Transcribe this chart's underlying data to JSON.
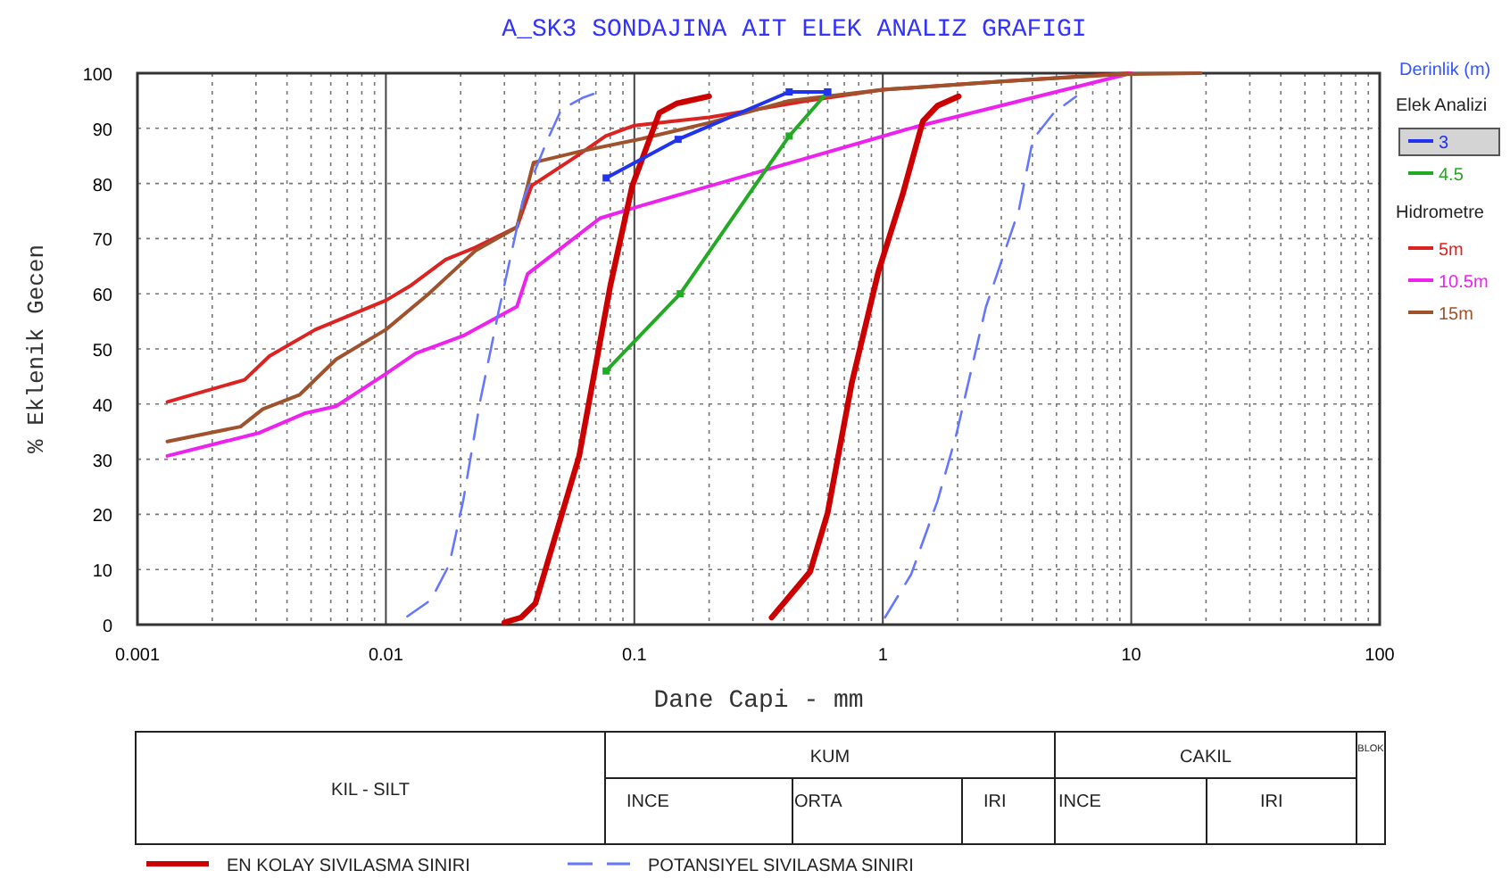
{
  "chart_data": {
    "type": "line",
    "title": "A_SK3 SONDAJINA AIT ELEK ANALIZ GRAFIGI",
    "xlabel": "Dane Capi - mm",
    "ylabel": "% Eklenik Gecen",
    "legend_title": "Derinlik (m)",
    "log": "x",
    "grid": true,
    "legend": "right",
    "xlim": [
      0.001,
      100
    ],
    "ylim": [
      0,
      100
    ],
    "xticks": [
      0.001,
      0.01,
      0.1,
      1,
      10,
      100
    ],
    "yticks": [
      0,
      10,
      20,
      30,
      40,
      50,
      60,
      70,
      80,
      90,
      100
    ],
    "annotations": [
      "Elek Analizi",
      "Hidrometre",
      "KIL - SILT",
      "KUM",
      "INCE",
      "ORTA",
      "IRI",
      "CAKIL",
      "INCE",
      "IRI",
      "BLOK"
    ],
    "series": [
      {
        "name": "3",
        "color": "#2233ee",
        "marker": "square",
        "x": [
          0.077,
          0.15,
          0.42,
          0.6
        ],
        "values": [
          81,
          88,
          96.6,
          96.6
        ]
      },
      {
        "name": "4.5",
        "color": "#22aa22",
        "marker": "square",
        "x": [
          0.077,
          0.153,
          0.42,
          0.6
        ],
        "values": [
          46,
          60,
          88.6,
          96.6
        ]
      },
      {
        "name": "5m",
        "color": "#dd2222",
        "x": [
          0.00132,
          0.0027,
          0.0034,
          0.0052,
          0.01,
          0.0125,
          0.0174,
          0.0229,
          0.0337,
          0.0386,
          0.0583,
          0.0767,
          0.1,
          0.2,
          0.5,
          1,
          3,
          10
        ],
        "values": [
          40.4,
          44.4,
          48.7,
          53.5,
          58.8,
          61.4,
          66.2,
          68.4,
          72.1,
          79.6,
          84.9,
          88.6,
          90.5,
          92,
          95,
          97,
          98.5,
          100
        ]
      },
      {
        "name": "10.5m",
        "color": "#ee22ee",
        "x": [
          0.00132,
          0.0031,
          0.0047,
          0.0063,
          0.01,
          0.0132,
          0.0205,
          0.0337,
          0.0372,
          0.0728,
          0.107,
          1.34,
          10
        ],
        "values": [
          30.6,
          34.8,
          38.3,
          39.6,
          45.5,
          49.2,
          52.4,
          57.7,
          63.6,
          73.7,
          76,
          90.2,
          100
        ]
      },
      {
        "name": "15m",
        "color": "#a0522d",
        "x": [
          0.00132,
          0.0026,
          0.0032,
          0.0045,
          0.0063,
          0.01,
          0.0148,
          0.0229,
          0.0337,
          0.0393,
          0.0617,
          0.107,
          0.2,
          0.42,
          1,
          3,
          9.1,
          19
        ],
        "values": [
          33.2,
          35.9,
          39.1,
          41.7,
          48.1,
          53.5,
          59.9,
          67.8,
          72.1,
          83.8,
          85.9,
          88.1,
          91,
          95,
          97,
          98.5,
          99.8,
          100
        ]
      },
      {
        "name": "EN KOLAY SIVILASMA SINIRI",
        "color": "#cc0000",
        "line_style": "solid",
        "x": [
          0.03,
          0.035,
          0.04,
          0.06,
          0.08,
          0.098,
          0.126,
          0.148,
          0.2,
          0.3,
          0.357,
          0.51,
          0.6,
          0.75,
          0.96,
          1.2,
          1.45,
          1.66,
          2.02
        ],
        "values": [
          0.4,
          1.3,
          3.9,
          30.6,
          61.4,
          79.5,
          92.8,
          94.5,
          95.8,
          null,
          1.3,
          9.6,
          20.3,
          43.8,
          64,
          77.9,
          91.3,
          94.1,
          95.8
        ]
      },
      {
        "name": "POTANSIYEL SIVILASMA SINIRI",
        "color": "#6677ff",
        "line_style": "dashed",
        "x": [
          0.0122,
          0.0152,
          0.018,
          0.0205,
          0.024,
          0.0284,
          0.0356,
          0.0443,
          0.0508,
          0.0617,
          0.069,
          0.5,
          1.02,
          1.3,
          1.66,
          1.97,
          2.6,
          3.53,
          4.02,
          4.88,
          6
        ],
        "values": [
          1.5,
          4.5,
          10.9,
          22.6,
          40.7,
          56.7,
          76.9,
          87.5,
          93.4,
          95.5,
          96.3,
          null,
          1.3,
          9.1,
          22.4,
          34.2,
          57.6,
          75.2,
          88,
          92.8,
          95.8
        ]
      }
    ]
  }
}
